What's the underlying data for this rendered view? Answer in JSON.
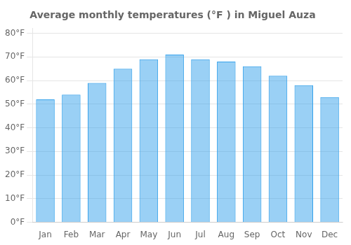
{
  "chart_data": {
    "type": "bar",
    "title": "Average monthly temperatures (°F ) in Miguel Auza",
    "categories": [
      "Jan",
      "Feb",
      "Mar",
      "Apr",
      "May",
      "Jun",
      "Jul",
      "Aug",
      "Sep",
      "Oct",
      "Nov",
      "Dec"
    ],
    "values": [
      52,
      54,
      59,
      65,
      69,
      71,
      69,
      68,
      66,
      62,
      58,
      53
    ],
    "ylim": [
      0,
      82
    ],
    "yticks": [
      {
        "value": 0,
        "label": "0°F"
      },
      {
        "value": 10,
        "label": "10°F"
      },
      {
        "value": 20,
        "label": "20°F"
      },
      {
        "value": 30,
        "label": "30°F"
      },
      {
        "value": 40,
        "label": "40°F"
      },
      {
        "value": 50,
        "label": "50°F"
      },
      {
        "value": 60,
        "label": "60°F"
      },
      {
        "value": 70,
        "label": "70°F"
      },
      {
        "value": 80,
        "label": "80°F"
      }
    ],
    "grid": true
  }
}
